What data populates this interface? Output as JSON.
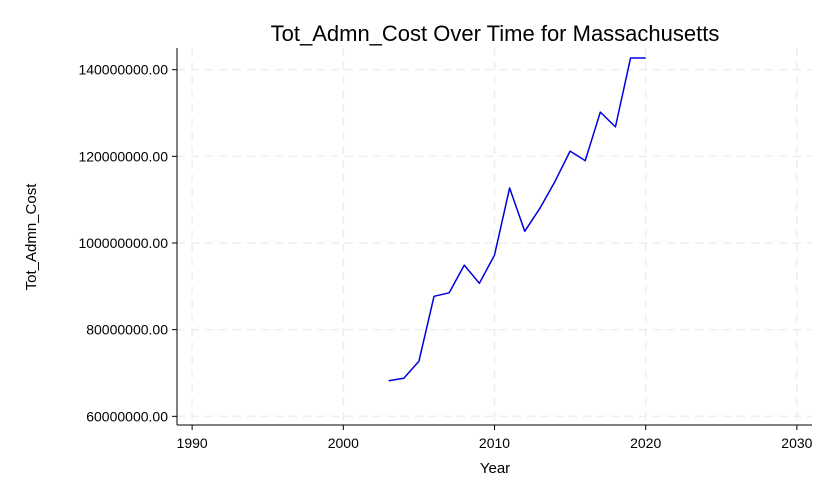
{
  "chart_data": {
    "type": "line",
    "title": "Tot_Admn_Cost Over Time for Massachusetts",
    "xlabel": "Year",
    "ylabel": "Tot_Admn_Cost",
    "xlim": [
      1989,
      2031
    ],
    "ylim": [
      58000000,
      145000000
    ],
    "x_ticks": [
      1990,
      2000,
      2010,
      2020,
      2030
    ],
    "x_tick_labels": [
      "1990",
      "2000",
      "2010",
      "2020",
      "2030"
    ],
    "y_ticks": [
      60000000,
      80000000,
      100000000,
      120000000,
      140000000
    ],
    "y_tick_labels": [
      "60000000.00",
      "80000000.00",
      "100000000.00",
      "120000000.00",
      "140000000.00"
    ],
    "grid": true,
    "series_color": "#0000dd",
    "series": [
      {
        "x": [
          2003,
          2004,
          2005,
          2006,
          2007,
          2008,
          2009,
          2010,
          2011,
          2012,
          2013,
          2014,
          2015,
          2016,
          2017,
          2018,
          2019,
          2020
        ],
        "values": [
          68200000,
          68800000,
          72700000,
          87700000,
          88500000,
          94900000,
          90700000,
          97200000,
          112700000,
          102700000,
          108000000,
          114200000,
          121200000,
          119000000,
          130200000,
          126800000,
          142700000,
          142700000
        ]
      }
    ]
  }
}
